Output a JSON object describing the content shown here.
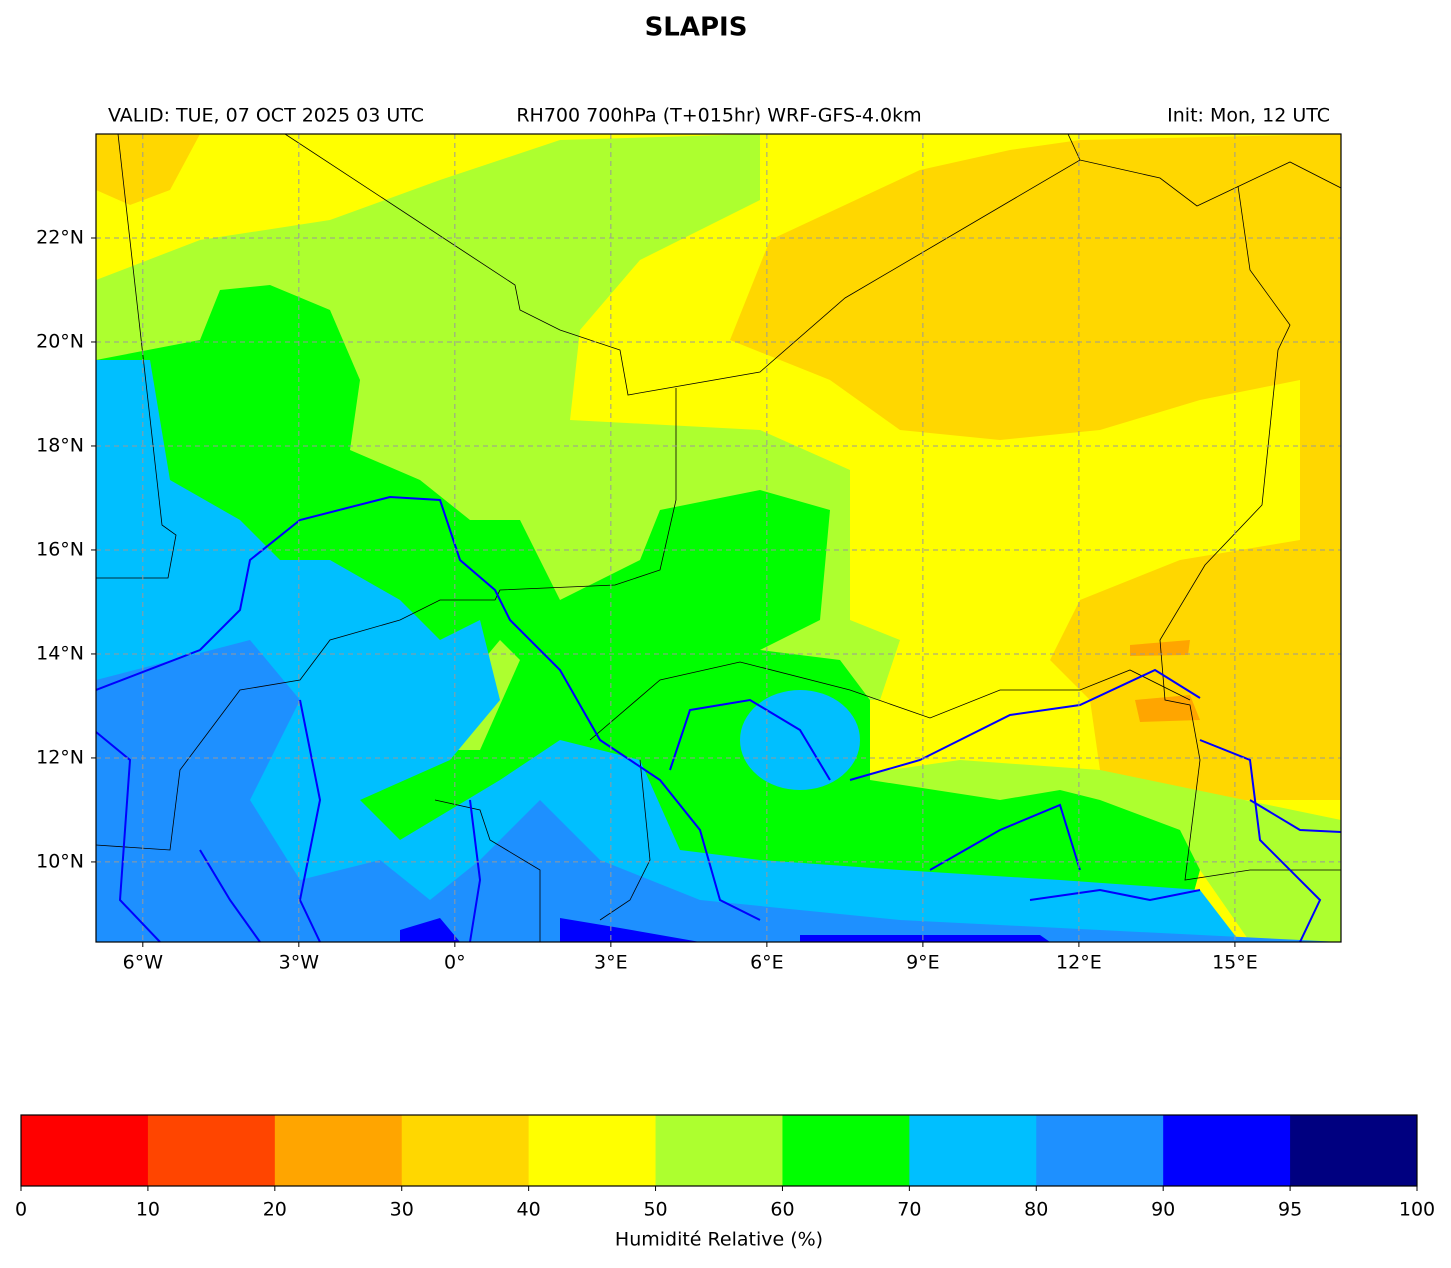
{
  "title": "SLAPIS",
  "subtitle_left": "VALID: TUE, 07 OCT 2025 03 UTC",
  "subtitle_center": "RH700 700hPa (T+015hr) WRF-GFS-4.0km",
  "subtitle_right": "Init: Mon, 12 UTC",
  "map": {
    "xlim": [
      -6.9,
      17.04
    ],
    "ylim": [
      8.46,
      24.0
    ],
    "xticks": [
      {
        "value": -6,
        "label": "6°W"
      },
      {
        "value": -3,
        "label": "3°W"
      },
      {
        "value": 0,
        "label": "0°"
      },
      {
        "value": 3,
        "label": "3°E"
      },
      {
        "value": 6,
        "label": "6°E"
      },
      {
        "value": 9,
        "label": "9°E"
      },
      {
        "value": 12,
        "label": "12°E"
      },
      {
        "value": 15,
        "label": "15°E"
      }
    ],
    "yticks": [
      {
        "value": 10,
        "label": "10°N"
      },
      {
        "value": 12,
        "label": "12°N"
      },
      {
        "value": 14,
        "label": "14°N"
      },
      {
        "value": 16,
        "label": "16°N"
      },
      {
        "value": 18,
        "label": "18°N"
      },
      {
        "value": 20,
        "label": "20°N"
      },
      {
        "value": 22,
        "label": "22°N"
      }
    ],
    "grid": true
  },
  "colorbar": {
    "label": "Humidité Relative (%)",
    "ticks": [
      0,
      10,
      20,
      30,
      40,
      50,
      60,
      70,
      80,
      90,
      95,
      100
    ],
    "colors": [
      "#ff0000",
      "#ff4500",
      "#ffa500",
      "#ffd700",
      "#ffff00",
      "#adff2f",
      "#00ff00",
      "#00bfff",
      "#1e90ff",
      "#0000ff",
      "#000080"
    ]
  }
}
